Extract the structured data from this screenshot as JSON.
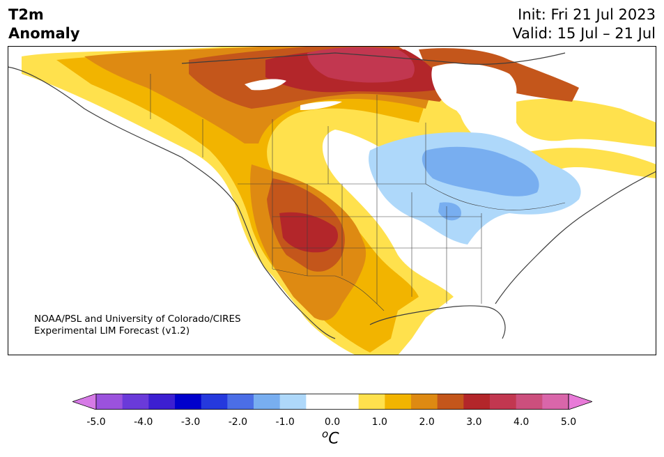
{
  "title": {
    "line1": "T2m",
    "line2": "Anomaly"
  },
  "dates": {
    "init": "Init: Fri 21 Jul 2023",
    "valid": "Valid: 15 Jul – 21 Jul"
  },
  "credit": {
    "line1": "NOAA/PSL and University of Colorado/CIRES",
    "line2": "Experimental LIM Forecast (v1.2)"
  },
  "colorbar": {
    "units": "C",
    "units_sup": "o",
    "tick_labels": [
      "-5.0",
      "-4.0",
      "-3.0",
      "-2.0",
      "-1.0",
      "0.0",
      "1.0",
      "2.0",
      "3.0",
      "4.0",
      "5.0"
    ],
    "colors": [
      "#d67ae6",
      "#9b52dd",
      "#6a3ad9",
      "#3c1fd1",
      "#0000cc",
      "#2539dd",
      "#4b6ee6",
      "#78aef0",
      "#aed8fa",
      "#ffffff",
      "#ffffff",
      "#ffe14d",
      "#f2b400",
      "#de8a12",
      "#c4561b",
      "#b3262a",
      "#c23750",
      "#cc4f7d",
      "#d966aa",
      "#e87ad8"
    ]
  },
  "map_colors": {
    "warm1": "#ffe14d",
    "warm2": "#f2b400",
    "warm3": "#de8a12",
    "warm4": "#c4561b",
    "warm5": "#b3262a",
    "warm6": "#c23750",
    "cool1": "#aed8fa",
    "cool2": "#78aef0"
  }
}
